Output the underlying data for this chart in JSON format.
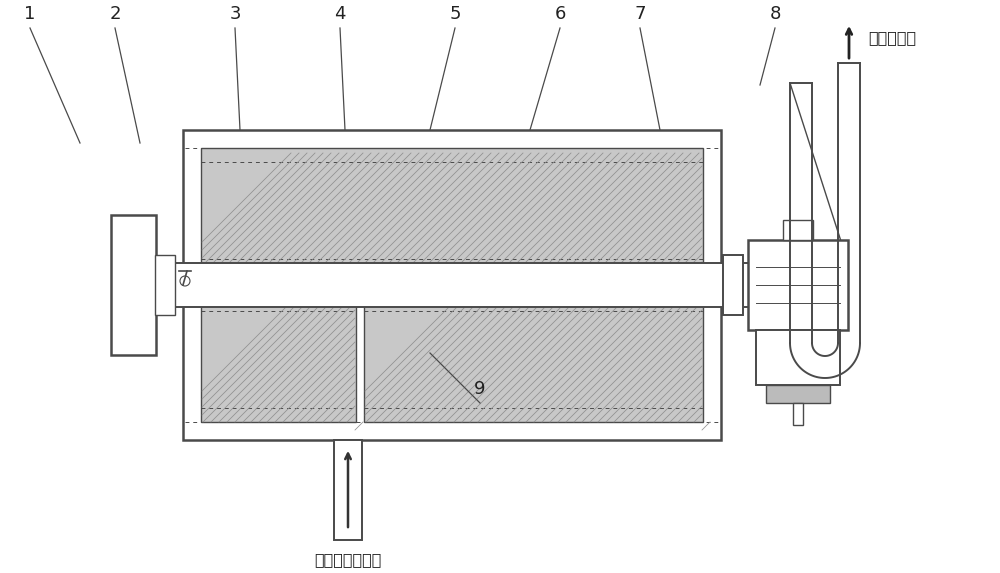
{
  "bg_color": "#ffffff",
  "lc": "#4a4a4a",
  "lc2": "#333333",
  "fc_filter": "#c8c8c8",
  "fc_white": "#ffffff",
  "fc_gray": "#aaaaaa",
  "annotation_right": "除焦油烟气",
  "annotation_bottom": "内含焦油的烟气",
  "labels": [
    "1",
    "2",
    "3",
    "4",
    "5",
    "6",
    "7",
    "8",
    "9"
  ],
  "figsize": [
    10.0,
    5.73
  ],
  "dpi": 100
}
